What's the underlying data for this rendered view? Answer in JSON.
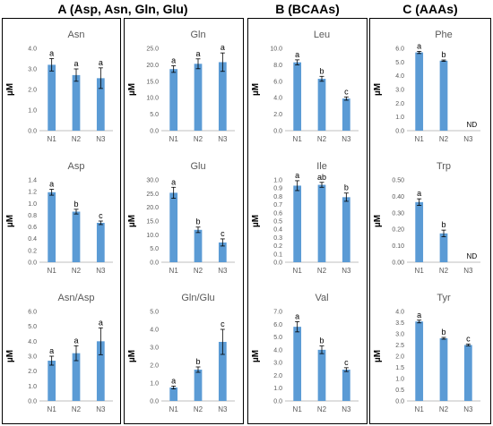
{
  "sections": [
    {
      "title": "A (Asp, Asn, Gln, Glu)"
    },
    {
      "title": "B (BCAAs)"
    },
    {
      "title": "C (AAAs)"
    }
  ],
  "colors": {
    "bar": "#5B9BD5",
    "axis": "#bfbfbf",
    "text": "#595959"
  },
  "chart_data": [
    {
      "id": "asn",
      "type": "bar",
      "title": "Asn",
      "ylabel": "µM",
      "categories": [
        "N1",
        "N2",
        "N3"
      ],
      "values": [
        3.2,
        2.7,
        2.55
      ],
      "errors": [
        0.3,
        0.3,
        0.5
      ],
      "letters": [
        "a",
        "a",
        "a"
      ],
      "ylim": [
        0,
        4
      ],
      "yticks": [
        "0.0",
        "1.0",
        "2.0",
        "3.0",
        "4.0"
      ]
    },
    {
      "id": "asp",
      "type": "bar",
      "title": "Asp",
      "ylabel": "µM",
      "categories": [
        "N1",
        "N2",
        "N3"
      ],
      "values": [
        1.19,
        0.86,
        0.67
      ],
      "errors": [
        0.05,
        0.04,
        0.03
      ],
      "letters": [
        "a",
        "b",
        "c"
      ],
      "ylim": [
        0,
        1.4
      ],
      "yticks": [
        "0.0",
        "0.2",
        "0.4",
        "0.6",
        "0.8",
        "1.0",
        "1.2",
        "1.4"
      ]
    },
    {
      "id": "asnasp",
      "type": "bar",
      "title": "Asn/Asp",
      "ylabel": "µM",
      "categories": [
        "N1",
        "N2",
        "N3"
      ],
      "values": [
        2.7,
        3.2,
        4.0
      ],
      "errors": [
        0.3,
        0.5,
        0.9
      ],
      "letters": [
        "a",
        "a",
        "a"
      ],
      "ylim": [
        0,
        6
      ],
      "yticks": [
        "0.0",
        "1.0",
        "2.0",
        "3.0",
        "4.0",
        "5.0",
        "6.0"
      ]
    },
    {
      "id": "gln",
      "type": "bar",
      "title": "Gln",
      "ylabel": "µM",
      "categories": [
        "N1",
        "N2",
        "N3"
      ],
      "values": [
        18.7,
        20.3,
        20.8
      ],
      "errors": [
        1.0,
        1.5,
        2.8
      ],
      "letters": [
        "a",
        "a",
        "a"
      ],
      "ylim": [
        0,
        25
      ],
      "yticks": [
        "0.0",
        "5.0",
        "10.0",
        "15.0",
        "20.0",
        "25.0"
      ]
    },
    {
      "id": "glu",
      "type": "bar",
      "title": "Glu",
      "ylabel": "µM",
      "categories": [
        "N1",
        "N2",
        "N3"
      ],
      "values": [
        25.3,
        11.8,
        7.2
      ],
      "errors": [
        2.0,
        1.0,
        1.3
      ],
      "letters": [
        "a",
        "b",
        "c"
      ],
      "ylim": [
        0,
        30
      ],
      "yticks": [
        "0.0",
        "5.0",
        "10.0",
        "15.0",
        "20.0",
        "25.0",
        "30.0"
      ]
    },
    {
      "id": "glnglu",
      "type": "bar",
      "title": "Gln/Glu",
      "ylabel": "µM",
      "categories": [
        "N1",
        "N2",
        "N3"
      ],
      "values": [
        0.75,
        1.75,
        3.3
      ],
      "errors": [
        0.08,
        0.15,
        0.7
      ],
      "letters": [
        "a",
        "b",
        "c"
      ],
      "ylim": [
        0,
        5
      ],
      "yticks": [
        "0.0",
        "1.0",
        "2.0",
        "3.0",
        "4.0",
        "5.0"
      ]
    },
    {
      "id": "leu",
      "type": "bar",
      "title": "Leu",
      "ylabel": "µM",
      "categories": [
        "N1",
        "N2",
        "N3"
      ],
      "values": [
        8.3,
        6.3,
        3.9
      ],
      "errors": [
        0.3,
        0.3,
        0.2
      ],
      "letters": [
        "a",
        "b",
        "c"
      ],
      "ylim": [
        0,
        10
      ],
      "yticks": [
        "0.0",
        "2.0",
        "4.0",
        "6.0",
        "8.0",
        "10.0"
      ]
    },
    {
      "id": "ile",
      "type": "bar",
      "title": "Ile",
      "ylabel": "µM",
      "categories": [
        "N1",
        "N2",
        "N3"
      ],
      "values": [
        0.93,
        0.94,
        0.79
      ],
      "errors": [
        0.06,
        0.03,
        0.05
      ],
      "letters": [
        "a",
        "ab",
        "b"
      ],
      "ylim": [
        0,
        1.0
      ],
      "yticks": [
        "0.0",
        "0.1",
        "0.2",
        "0.3",
        "0.4",
        "0.5",
        "0.6",
        "0.7",
        "0.8",
        "0.9",
        "1.0"
      ]
    },
    {
      "id": "val",
      "type": "bar",
      "title": "Val",
      "ylabel": "µM",
      "categories": [
        "N1",
        "N2",
        "N3"
      ],
      "values": [
        5.8,
        4.0,
        2.45
      ],
      "errors": [
        0.4,
        0.3,
        0.15
      ],
      "letters": [
        "a",
        "b",
        "c"
      ],
      "ylim": [
        0,
        7
      ],
      "yticks": [
        "0.0",
        "1.0",
        "2.0",
        "3.0",
        "4.0",
        "5.0",
        "6.0",
        "7.0"
      ]
    },
    {
      "id": "phe",
      "type": "bar",
      "title": "Phe",
      "ylabel": "µM",
      "categories": [
        "N1",
        "N2",
        "N3"
      ],
      "values": [
        5.7,
        5.1,
        null
      ],
      "errors": [
        0.08,
        0.05,
        null
      ],
      "letters": [
        "a",
        "b",
        ""
      ],
      "missing_labels": [
        "",
        "",
        "ND"
      ],
      "ylim": [
        0,
        6
      ],
      "yticks": [
        "0.0",
        "1.0",
        "2.0",
        "3.0",
        "4.0",
        "5.0",
        "6.0"
      ]
    },
    {
      "id": "trp",
      "type": "bar",
      "title": "Trp",
      "ylabel": "µM",
      "categories": [
        "N1",
        "N2",
        "N3"
      ],
      "values": [
        0.365,
        0.175,
        null
      ],
      "errors": [
        0.02,
        0.02,
        null
      ],
      "letters": [
        "a",
        "b",
        ""
      ],
      "missing_labels": [
        "",
        "",
        "ND"
      ],
      "ylim": [
        0,
        0.5
      ],
      "yticks": [
        "0.00",
        "0.10",
        "0.20",
        "0.30",
        "0.40",
        "0.50"
      ]
    },
    {
      "id": "tyr",
      "type": "bar",
      "title": "Tyr",
      "ylabel": "µM",
      "categories": [
        "N1",
        "N2",
        "N3"
      ],
      "values": [
        3.55,
        2.8,
        2.5
      ],
      "errors": [
        0.06,
        0.04,
        0.04
      ],
      "letters": [
        "a",
        "b",
        "c"
      ],
      "ylim": [
        0,
        4
      ],
      "yticks": [
        "0.0",
        "0.5",
        "1.0",
        "1.5",
        "2.0",
        "2.5",
        "3.0",
        "3.5",
        "4.0"
      ]
    }
  ]
}
